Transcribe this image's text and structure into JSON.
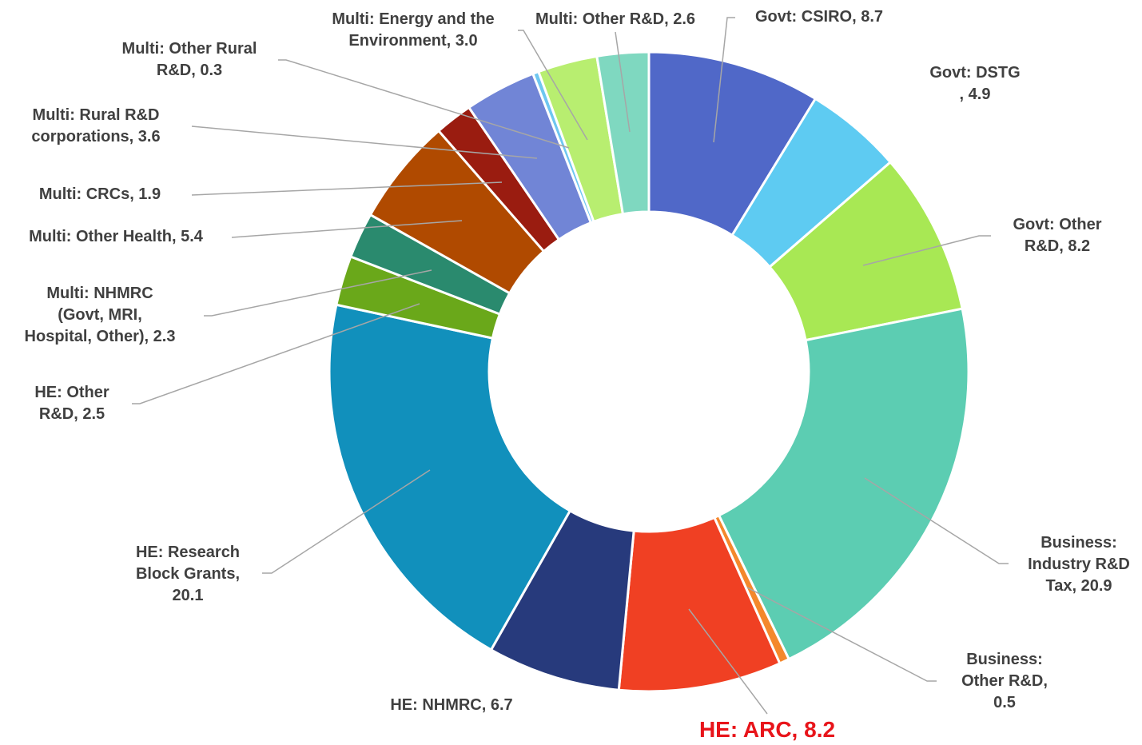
{
  "chart_data": {
    "type": "donut",
    "value_labels": [
      "Govt: CSIRO, 8.7",
      "Govt: DSTG\n, 4.9",
      "Govt: Other\nR&D, 8.2",
      "Business:\nIndustry R&D\nTax, 20.9",
      "Business:\nOther R&D,\n0.5",
      "HE: ARC, 8.2",
      "HE: NHMRC, 6.7",
      "HE: Research\nBlock Grants,\n20.1",
      "HE: Other\nR&D, 2.5",
      "Multi: NHMRC\n(Govt, MRI,\nHospital, Other), 2.3",
      "Multi: Other Health, 5.4",
      "Multi: CRCs, 1.9",
      "Multi: Rural R&D\ncorporations, 3.6",
      "Multi: Other Rural\nR&D, 0.3",
      "Multi: Energy and the\nEnvironment, 3.0",
      "Multi: Other R&D, 2.6"
    ],
    "values": [
      8.7,
      4.9,
      8.2,
      20.9,
      0.5,
      8.2,
      6.7,
      20.1,
      2.5,
      2.3,
      5.4,
      1.9,
      3.6,
      0.3,
      3.0,
      2.6
    ],
    "colors": [
      "#5068c8",
      "#5ecbf2",
      "#a8e854",
      "#5ccdb2",
      "#f4882c",
      "#f04023",
      "#273a7c",
      "#1190bc",
      "#6aa81a",
      "#2a8a6e",
      "#b04a00",
      "#9a1c10",
      "#7185d6",
      "#6ec7f0",
      "#b8ee70",
      "#7fd8c0"
    ],
    "highlight": {
      "index": 5,
      "color": "#e8141a"
    }
  }
}
